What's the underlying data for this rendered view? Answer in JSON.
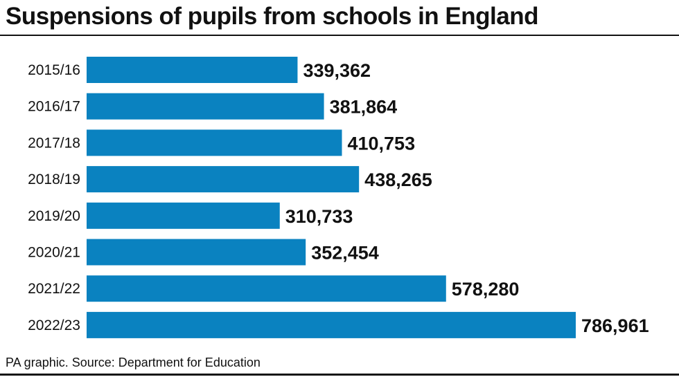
{
  "title": "Suspensions of pupils from schools in England",
  "source": "PA graphic. Source: Department for Education",
  "colors": {
    "bar": "#0a82c0",
    "text": "#111111"
  },
  "chart_data": {
    "type": "bar",
    "orientation": "horizontal",
    "title": "Suspensions of pupils from schools in England",
    "categories": [
      "2015/16",
      "2016/17",
      "2017/18",
      "2018/19",
      "2019/20",
      "2020/21",
      "2021/22",
      "2022/23"
    ],
    "values": [
      339362,
      381864,
      410753,
      438265,
      310733,
      352454,
      578280,
      786961
    ],
    "value_labels": [
      "339,362",
      "381,864",
      "410,753",
      "438,265",
      "310,733",
      "352,454",
      "578,280",
      "786,961"
    ],
    "xlim": [
      0,
      786961
    ],
    "grid": false,
    "legend": "none"
  }
}
